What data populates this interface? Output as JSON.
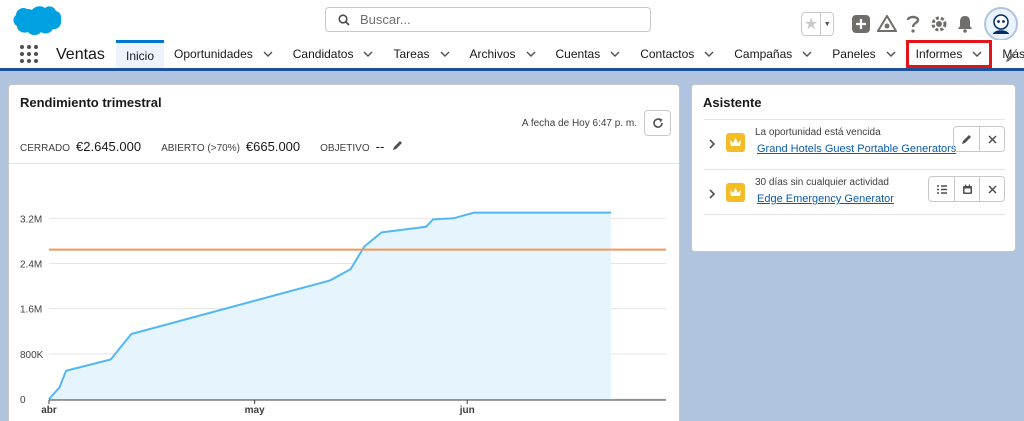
{
  "header": {
    "search_placeholder": "Buscar...",
    "brand_color": "#00a1e0"
  },
  "nav": {
    "app_name": "Ventas",
    "items": [
      {
        "label": "Inicio",
        "chevron": false,
        "active": true
      },
      {
        "label": "Oportunidades",
        "chevron": true
      },
      {
        "label": "Candidatos",
        "chevron": true
      },
      {
        "label": "Tareas",
        "chevron": true
      },
      {
        "label": "Archivos",
        "chevron": true
      },
      {
        "label": "Cuentas",
        "chevron": true
      },
      {
        "label": "Contactos",
        "chevron": true
      },
      {
        "label": "Campañas",
        "chevron": true
      },
      {
        "label": "Paneles",
        "chevron": true
      },
      {
        "label": "Informes",
        "chevron": true,
        "highlighted": true
      },
      {
        "label": "Más",
        "caret": true
      }
    ],
    "highlight_color": "#e3141a"
  },
  "performance": {
    "title": "Rendimiento trimestral",
    "as_of": "A fecha de Hoy 6:47 p. m.",
    "closed_label": "CERRADO",
    "closed_value": "€2.645.000",
    "open_label": "ABIERTO (>70%)",
    "open_value": "€665.000",
    "target_label": "OBJETIVO",
    "target_value": "--"
  },
  "chart_data": {
    "type": "area",
    "x_ticks": [
      "abr",
      "may",
      "jun"
    ],
    "y_ticks": [
      "0",
      "800K",
      "1.6M",
      "2.4M",
      "3.2M"
    ],
    "ylim": [
      0,
      3400000
    ],
    "xlim_days": [
      0,
      90
    ],
    "series": [
      {
        "color": "#52b7f5",
        "points": [
          [
            0,
            0
          ],
          [
            1.5,
            200000
          ],
          [
            2.5,
            500000
          ],
          [
            9,
            700000
          ],
          [
            12,
            1150000
          ],
          [
            41,
            2100000
          ],
          [
            44,
            2300000
          ],
          [
            46,
            2700000
          ],
          [
            48.5,
            2950000
          ],
          [
            55,
            3050000
          ],
          [
            56,
            3180000
          ],
          [
            59,
            3200000
          ],
          [
            62,
            3300000
          ],
          [
            82,
            3300000
          ]
        ]
      }
    ],
    "target_line": {
      "value": 2645000,
      "color": "#f49756"
    },
    "grid": true
  },
  "assistant": {
    "title": "Asistente",
    "items": [
      {
        "text": "La oportunidad está vencida",
        "link": "Grand Hotels Guest Portable Generators",
        "actions": [
          "edit-icon",
          "close-icon"
        ]
      },
      {
        "text": "30 días sin cualquier actividad",
        "link": "Edge Emergency Generator",
        "actions": [
          "new-task-icon",
          "calendar-icon",
          "close-icon"
        ]
      }
    ]
  }
}
